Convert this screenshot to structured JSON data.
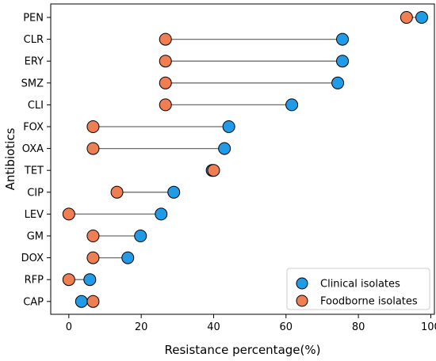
{
  "chart_data": {
    "type": "dumbbell",
    "xlabel": "Resistance percentage(%)",
    "ylabel": "Antibiotics",
    "xlim": [
      -5,
      101
    ],
    "xticks": [
      0,
      20,
      40,
      60,
      80,
      100
    ],
    "grid": false,
    "legend_position": "bottom-right",
    "categories": [
      "PEN",
      "CLR",
      "ERY",
      "SMZ",
      "CLI",
      "FOX",
      "OXA",
      "TET",
      "CIP",
      "LEV",
      "GM",
      "DOX",
      "RFP",
      "CAP"
    ],
    "series": [
      {
        "name": "Clinical isolates",
        "color": "#1f9be8",
        "values": [
          97.5,
          75.6,
          75.6,
          74.3,
          61.6,
          44.2,
          43.0,
          39.6,
          29.0,
          25.5,
          19.8,
          16.3,
          5.8,
          3.5
        ]
      },
      {
        "name": "Foodborne isolates",
        "color": "#ef7e52",
        "values": [
          93.3,
          26.7,
          26.7,
          26.7,
          26.7,
          6.7,
          6.7,
          40.0,
          13.3,
          0.0,
          6.7,
          6.7,
          0.0,
          6.7
        ]
      }
    ],
    "connector_color": "#6e6e6e"
  }
}
